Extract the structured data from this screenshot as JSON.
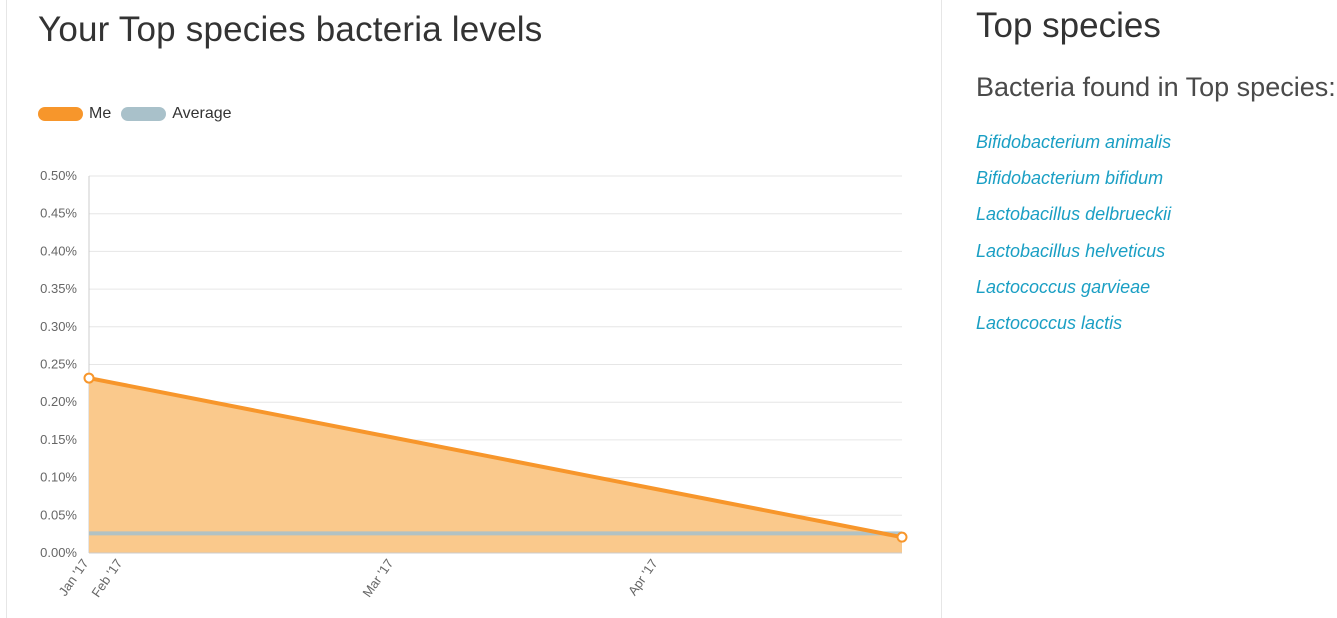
{
  "main": {
    "title": "Your Top species bacteria levels"
  },
  "sidebar": {
    "title": "Top species",
    "subtitle": "Bacteria found in Top species:",
    "species": [
      "Bifidobacterium animalis",
      "Bifidobacterium bifidum",
      "Lactobacillus delbrueckii",
      "Lactobacillus helveticus",
      "Lactococcus garvieae",
      "Lactococcus lactis"
    ]
  },
  "colors": {
    "me": "#f7962b",
    "me_fill": "#fac98c",
    "average": "#a9c1ca",
    "link": "#1a9fc4"
  },
  "chart_data": {
    "type": "area",
    "title": "",
    "xlabel": "",
    "ylabel": "",
    "x_domain": [
      "2017-01-01",
      "2017-05-01"
    ],
    "x_ticks": [
      {
        "label": "Jan '17",
        "date": "2017-01-01"
      },
      {
        "label": "Feb '17",
        "date": "2017-01-06"
      },
      {
        "label": "Mar '17",
        "date": "2017-02-15"
      },
      {
        "label": "Apr '17",
        "date": "2017-03-26"
      }
    ],
    "y_ticks": [
      "0.00%",
      "0.05%",
      "0.10%",
      "0.15%",
      "0.20%",
      "0.25%",
      "0.30%",
      "0.35%",
      "0.40%",
      "0.45%",
      "0.50%"
    ],
    "ylim": [
      0,
      0.5
    ],
    "y_unit": "%",
    "grid": true,
    "legend": "top-left",
    "series": [
      {
        "name": "Me",
        "points": [
          {
            "x": "2017-01-01",
            "y": 0.232
          },
          {
            "x": "2017-05-01",
            "y": 0.021
          }
        ]
      },
      {
        "name": "Average",
        "points": [
          {
            "x": "2017-01-01",
            "y": 0.026
          },
          {
            "x": "2017-05-01",
            "y": 0.026
          }
        ]
      }
    ]
  }
}
